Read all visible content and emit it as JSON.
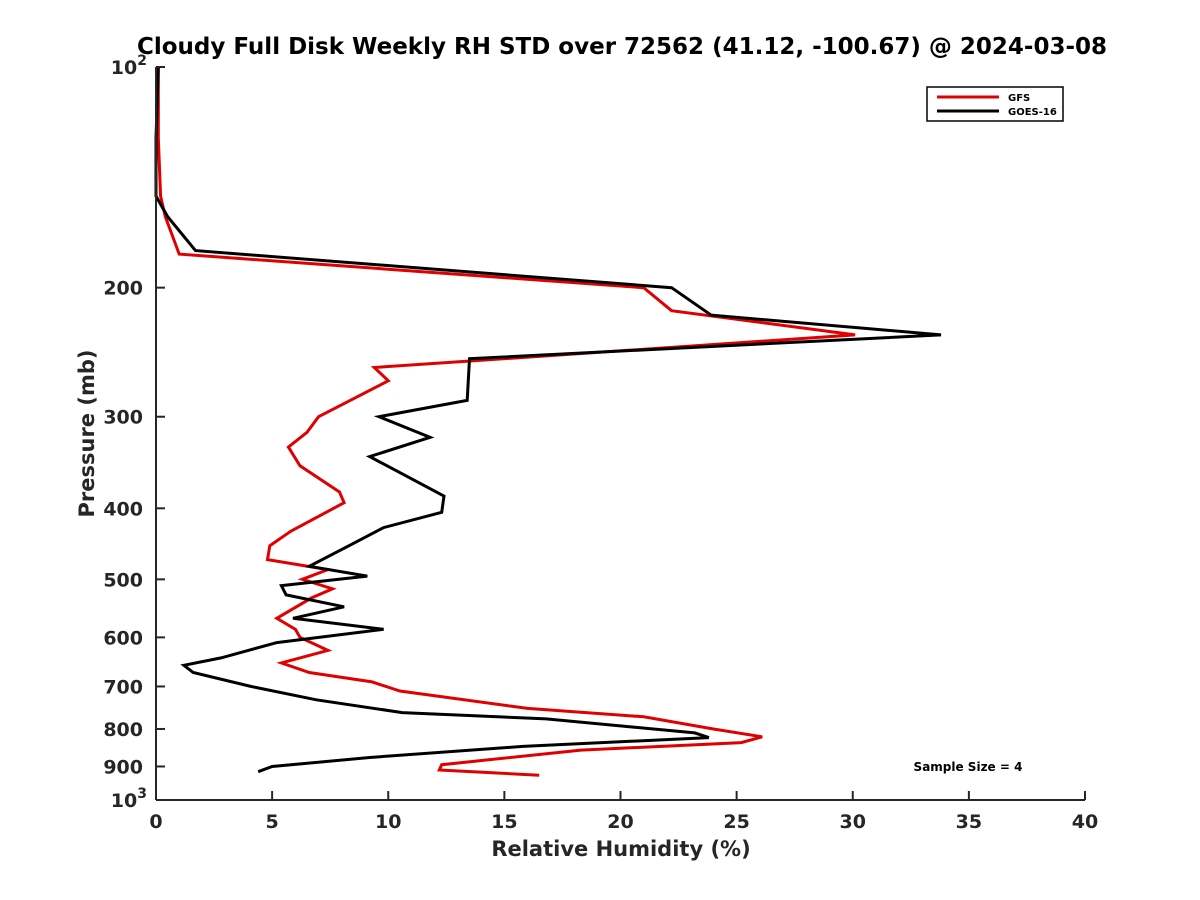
{
  "chart_data": {
    "type": "line",
    "title": "Cloudy Full Disk Weekly RH STD over 72562 (41.12, -100.67) @ 2024-03-08",
    "xlabel": "Relative Humidity (%)",
    "ylabel": "Pressure (mb)",
    "xlim": [
      0,
      40
    ],
    "ylim": [
      1000,
      100
    ],
    "yscale": "log",
    "y_reversed": true,
    "xticks": [
      0,
      5,
      10,
      15,
      20,
      25,
      30,
      35,
      40
    ],
    "yticks": [
      {
        "value": 100,
        "base": "10",
        "exp": "2"
      },
      {
        "value": 200,
        "label": "200"
      },
      {
        "value": 300,
        "label": "300"
      },
      {
        "value": 400,
        "label": "400"
      },
      {
        "value": 500,
        "label": "500"
      },
      {
        "value": 600,
        "label": "600"
      },
      {
        "value": 700,
        "label": "700"
      },
      {
        "value": 800,
        "label": "800"
      },
      {
        "value": 900,
        "label": "900"
      },
      {
        "value": 1000,
        "base": "10",
        "exp": "3"
      }
    ],
    "grid": false,
    "legend_position": "top-right",
    "series": [
      {
        "name": "GFS",
        "color": "#e00000",
        "points": [
          [
            0.1,
            100
          ],
          [
            0.1,
            125
          ],
          [
            0.2,
            150
          ],
          [
            0.4,
            160
          ],
          [
            1.0,
            180
          ],
          [
            21.0,
            200
          ],
          [
            22.2,
            215
          ],
          [
            30.1,
            232
          ],
          [
            9.4,
            257
          ],
          [
            10.0,
            268
          ],
          [
            7.0,
            300
          ],
          [
            6.5,
            315
          ],
          [
            5.7,
            330
          ],
          [
            6.2,
            350
          ],
          [
            7.9,
            380
          ],
          [
            8.1,
            393
          ],
          [
            5.8,
            430
          ],
          [
            4.9,
            450
          ],
          [
            4.8,
            470
          ],
          [
            7.4,
            485
          ],
          [
            6.3,
            500
          ],
          [
            7.6,
            515
          ],
          [
            6.7,
            530
          ],
          [
            5.2,
            565
          ],
          [
            6.0,
            585
          ],
          [
            6.2,
            600
          ],
          [
            7.4,
            625
          ],
          [
            5.4,
            650
          ],
          [
            6.6,
            670
          ],
          [
            9.3,
            690
          ],
          [
            10.5,
            710
          ],
          [
            16.0,
            750
          ],
          [
            21.0,
            770
          ],
          [
            24.0,
            800
          ],
          [
            26.1,
            820
          ],
          [
            25.2,
            835
          ],
          [
            18.3,
            855
          ],
          [
            12.3,
            895
          ],
          [
            12.2,
            910
          ],
          [
            16.5,
            925
          ]
        ]
      },
      {
        "name": "GOES-16",
        "color": "#000000",
        "points": [
          [
            0.1,
            100
          ],
          [
            0.0,
            125
          ],
          [
            0.0,
            150
          ],
          [
            0.5,
            160
          ],
          [
            1.7,
            178
          ],
          [
            22.2,
            200
          ],
          [
            23.9,
            218
          ],
          [
            33.8,
            232
          ],
          [
            13.5,
            250
          ],
          [
            13.4,
            285
          ],
          [
            9.6,
            300
          ],
          [
            11.8,
            320
          ],
          [
            9.2,
            340
          ],
          [
            12.4,
            385
          ],
          [
            12.3,
            405
          ],
          [
            9.8,
            425
          ],
          [
            8.3,
            450
          ],
          [
            6.6,
            480
          ],
          [
            9.1,
            495
          ],
          [
            5.4,
            510
          ],
          [
            5.6,
            525
          ],
          [
            8.1,
            545
          ],
          [
            5.9,
            565
          ],
          [
            9.8,
            585
          ],
          [
            5.2,
            610
          ],
          [
            2.8,
            640
          ],
          [
            1.2,
            655
          ],
          [
            1.6,
            670
          ],
          [
            4.1,
            700
          ],
          [
            6.9,
            730
          ],
          [
            10.6,
            760
          ],
          [
            16.8,
            775
          ],
          [
            20.5,
            795
          ],
          [
            23.2,
            810
          ],
          [
            23.8,
            822
          ],
          [
            15.8,
            845
          ],
          [
            9.2,
            875
          ],
          [
            5.0,
            900
          ],
          [
            4.4,
            915
          ]
        ]
      }
    ],
    "annotations": [
      {
        "text": "Sample Size = 4"
      }
    ]
  }
}
